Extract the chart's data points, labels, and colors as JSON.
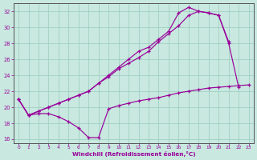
{
  "bg_color": "#c8e8e0",
  "line_color": "#990099",
  "grid_color": "#99ccbb",
  "xlabel": "Windchill (Refroidissement éolien,°C)",
  "xmin": -0.5,
  "xmax": 23.5,
  "ymin": 15.5,
  "ymax": 33.0,
  "yticks": [
    16,
    18,
    20,
    22,
    24,
    26,
    28,
    30,
    32
  ],
  "xticks": [
    0,
    1,
    2,
    3,
    4,
    5,
    6,
    7,
    8,
    9,
    10,
    11,
    12,
    13,
    14,
    15,
    16,
    17,
    18,
    19,
    20,
    21,
    22,
    23
  ],
  "s1_x": [
    0,
    1,
    2,
    3,
    4,
    5,
    6,
    7,
    8,
    9,
    10,
    11,
    12,
    13,
    14,
    15,
    16,
    17,
    18,
    19,
    20,
    21,
    22,
    23
  ],
  "s1_y": [
    21.0,
    19.0,
    19.2,
    19.2,
    18.8,
    18.2,
    17.4,
    16.2,
    16.2,
    19.8,
    20.2,
    20.5,
    20.8,
    21.0,
    21.2,
    21.5,
    21.8,
    22.0,
    22.2,
    22.4,
    22.5,
    22.6,
    22.7,
    22.8
  ],
  "s2_x": [
    0,
    1,
    2,
    3,
    4,
    5,
    6,
    7,
    8,
    9,
    10,
    11,
    12,
    13,
    14,
    15,
    16,
    17,
    18,
    19,
    20,
    21
  ],
  "s2_y": [
    21.0,
    19.0,
    19.5,
    20.0,
    20.5,
    21.0,
    21.5,
    22.0,
    23.0,
    23.8,
    24.8,
    25.5,
    26.2,
    27.0,
    28.2,
    29.2,
    30.2,
    31.5,
    32.0,
    31.8,
    31.5,
    28.2
  ],
  "s3_x": [
    0,
    1,
    2,
    3,
    4,
    5,
    6,
    7,
    8,
    9,
    10,
    11,
    12,
    13,
    14,
    15,
    16,
    17,
    18,
    19,
    20,
    21,
    22,
    23
  ],
  "s3_y": [
    21.0,
    19.0,
    19.5,
    20.0,
    20.5,
    21.0,
    21.5,
    22.0,
    23.0,
    24.0,
    25.0,
    26.0,
    27.0,
    27.5,
    28.5,
    29.5,
    31.8,
    32.5,
    32.0,
    31.8,
    31.5,
    28.0,
    22.5,
    null
  ]
}
